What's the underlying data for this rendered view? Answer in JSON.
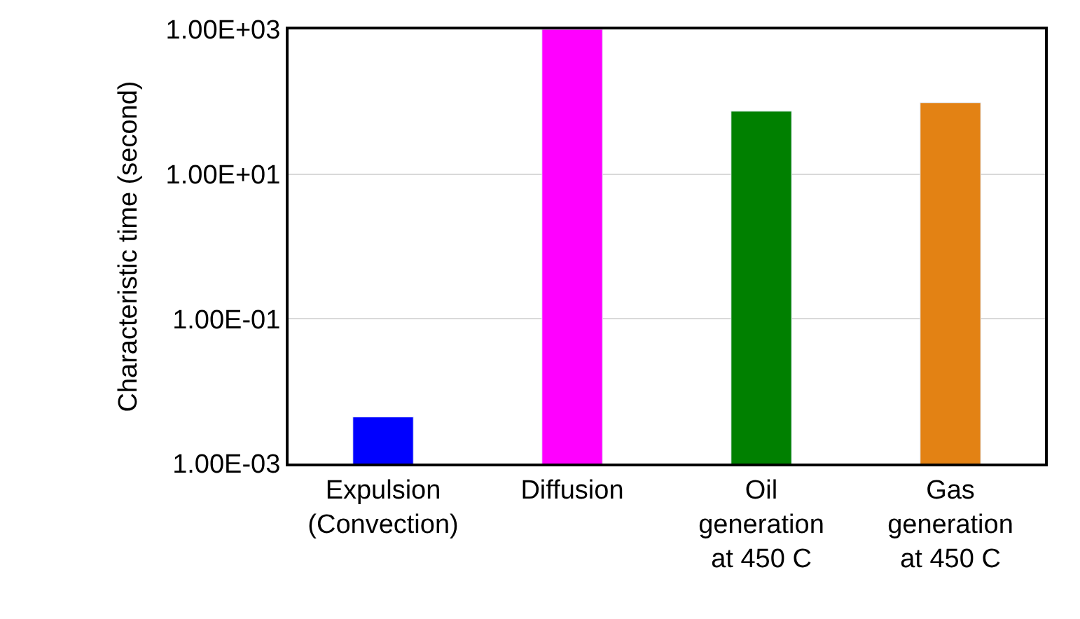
{
  "chart_data": {
    "type": "bar",
    "ylabel": "Characteristic time (second)",
    "categories": [
      "Expulsion\n(Convection)",
      "Diffusion",
      "Oil\ngeneration\nat 450 C",
      "Gas\ngeneration\nat 450 C"
    ],
    "values": [
      0.0044,
      1000,
      74,
      97
    ],
    "colors": [
      "#0000ff",
      "#ff00ff",
      "#008000",
      "#e38214"
    ],
    "log": true,
    "ylim": [
      0.001,
      1000
    ],
    "yticks": [
      {
        "value": 0.001,
        "label": "1.00E-03"
      },
      {
        "value": 0.1,
        "label": "1.00E-01"
      },
      {
        "value": 10,
        "label": "1.00E+01"
      },
      {
        "value": 1000,
        "label": "1.00E+03"
      }
    ],
    "grid": "y"
  }
}
